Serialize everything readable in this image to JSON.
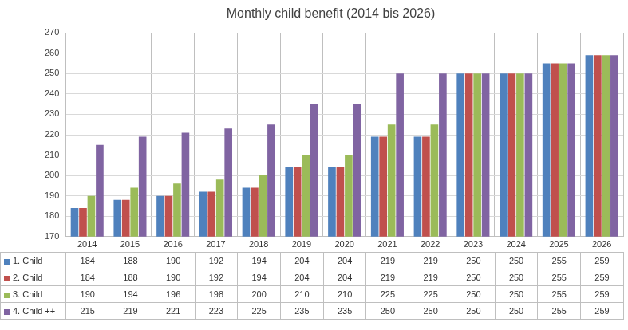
{
  "chart_data": {
    "type": "bar",
    "title": "Monthly child benefit (2014 bis 2026)",
    "categories": [
      "2014",
      "2015",
      "2016",
      "2017",
      "2018",
      "2019",
      "2020",
      "2021",
      "2022",
      "2023",
      "2024",
      "2025",
      "2026"
    ],
    "series": [
      {
        "name": "1. Child",
        "color": "#4f81bd",
        "values": [
          184,
          188,
          190,
          192,
          194,
          204,
          204,
          219,
          219,
          250,
          250,
          255,
          259
        ]
      },
      {
        "name": "2. Child",
        "color": "#c0504d",
        "values": [
          184,
          188,
          190,
          192,
          194,
          204,
          204,
          219,
          219,
          250,
          250,
          255,
          259
        ]
      },
      {
        "name": "3. Child",
        "color": "#9bbb59",
        "values": [
          190,
          194,
          196,
          198,
          200,
          210,
          210,
          225,
          225,
          250,
          250,
          255,
          259
        ]
      },
      {
        "name": "4. Child ++",
        "color": "#8064a2",
        "values": [
          215,
          219,
          221,
          223,
          225,
          235,
          235,
          250,
          250,
          250,
          250,
          255,
          259
        ]
      }
    ],
    "ylim": [
      170,
      270
    ],
    "yticks": [
      170,
      180,
      190,
      200,
      210,
      220,
      230,
      240,
      250,
      260,
      270
    ],
    "grid": true
  }
}
